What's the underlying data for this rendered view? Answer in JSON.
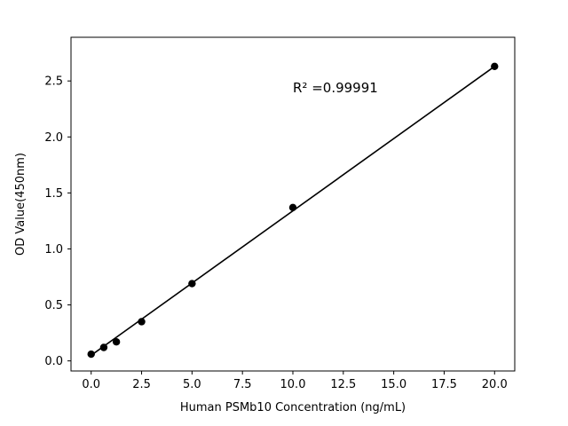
{
  "figure": {
    "background": "#ffffff"
  },
  "chart_data": {
    "type": "scatter",
    "title": "",
    "xlabel": "Human PSMb10 Concentration (ng/mL)",
    "ylabel": "OD Value(450nm)",
    "x": [
      0,
      0.625,
      1.25,
      2.5,
      5,
      10,
      20
    ],
    "y": [
      0.06,
      0.12,
      0.17,
      0.35,
      0.69,
      1.37,
      2.63
    ],
    "fit_line": {
      "x": [
        0,
        20
      ],
      "y": [
        0.05,
        2.63
      ]
    },
    "annotation": "R² =0.99991",
    "annotation_position": {
      "x": 10.0,
      "y": 2.4
    },
    "xticks": [
      0.0,
      2.5,
      5.0,
      7.5,
      10.0,
      12.5,
      15.0,
      17.5,
      20.0
    ],
    "yticks": [
      0.0,
      0.5,
      1.0,
      1.5,
      2.0,
      2.5
    ],
    "xlim": [
      -1,
      21
    ],
    "ylim": [
      -0.09,
      2.89
    ],
    "grid": false,
    "legend": "none",
    "marker_color": "#000000",
    "line_color": "#000000",
    "axis_color": "#000000"
  }
}
